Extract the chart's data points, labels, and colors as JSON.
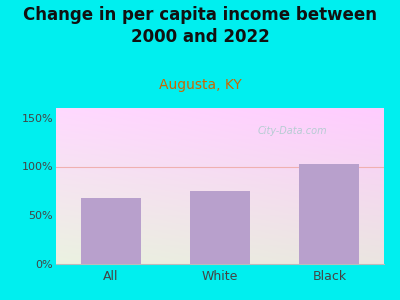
{
  "title": "Change in per capita income between\n2000 and 2022",
  "subtitle": "Augusta, KY",
  "categories": [
    "All",
    "White",
    "Black"
  ],
  "values": [
    68,
    75,
    103
  ],
  "bar_color": "#b8a0cc",
  "outer_bg": "#00efef",
  "plot_bg_topleft": "#c8eec8",
  "plot_bg_topright": "#f0fff0",
  "plot_bg_bottom": "#e8f8e8",
  "title_fontsize": 12,
  "title_color": "#111111",
  "subtitle_color": "#cc6600",
  "subtitle_fontsize": 10,
  "ylim": [
    0,
    160
  ],
  "yticks": [
    0,
    50,
    100,
    150
  ],
  "yticklabels": [
    "0%",
    "50%",
    "100%",
    "150%"
  ],
  "hline_y": 100,
  "hline_color": "#f0b0b0",
  "watermark": "City-Data.com",
  "watermark_color": "#aacccc"
}
